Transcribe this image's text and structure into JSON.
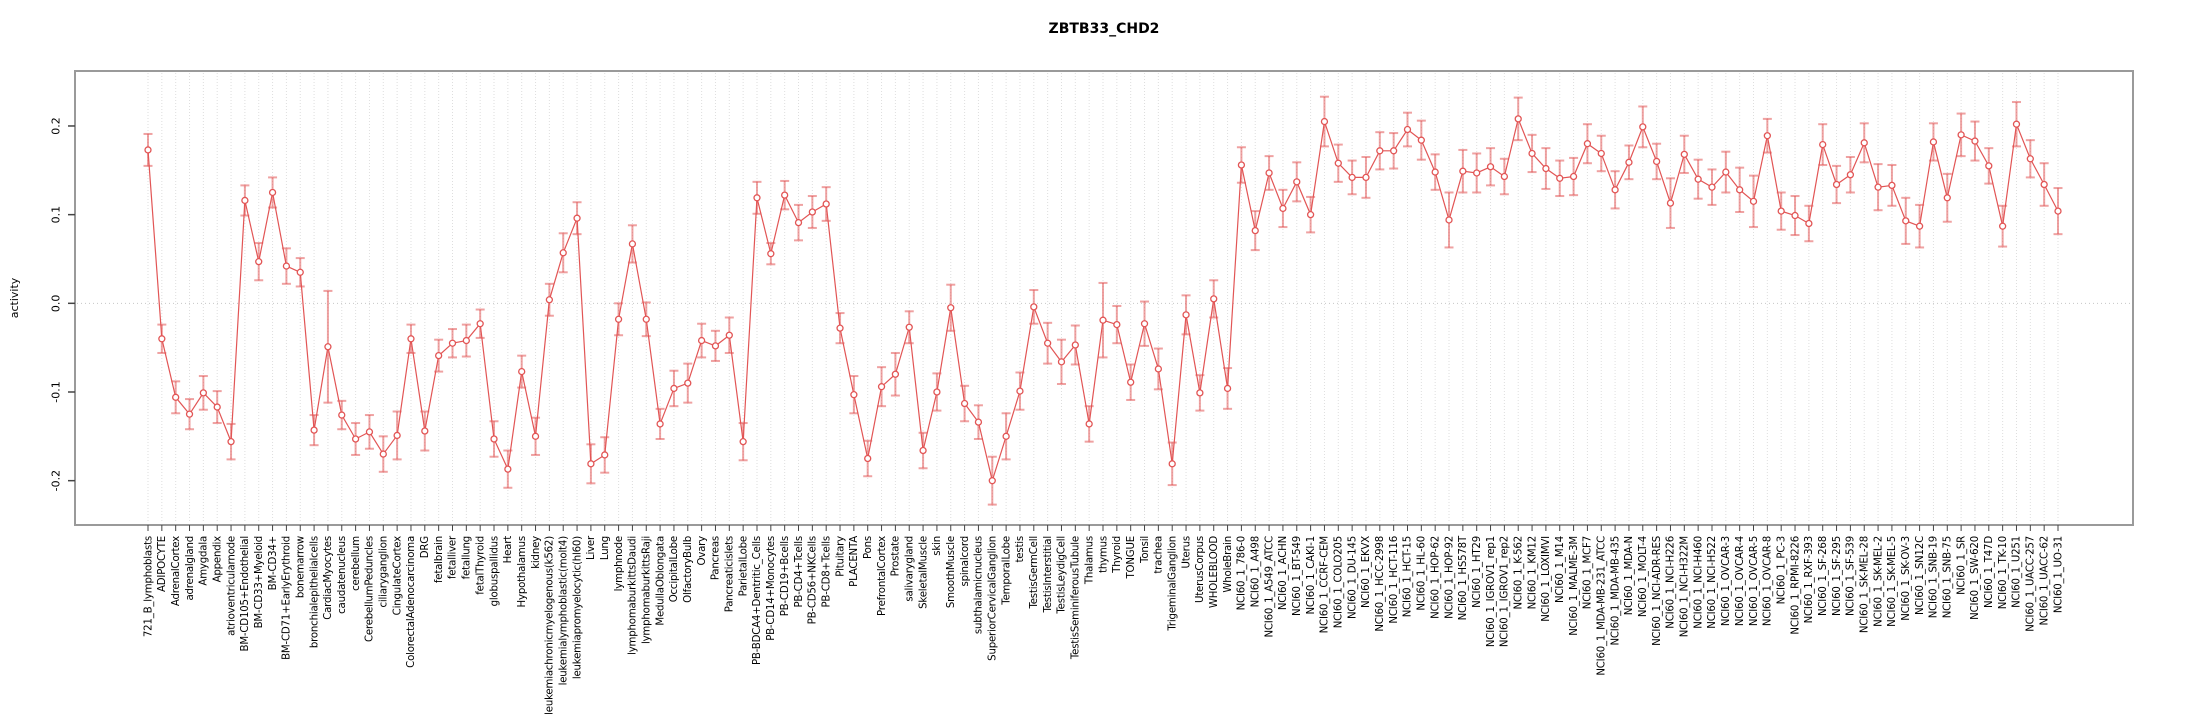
{
  "title": "ZBTB33_CHD2",
  "chart_data": {
    "type": "line",
    "title": "ZBTB33_CHD2",
    "xlabel": "",
    "ylabel": "activity",
    "ylim": [
      -0.25,
      0.262
    ],
    "yticks": [
      -0.2,
      -0.1,
      0.0,
      0.1,
      0.2
    ],
    "grid": "vertical dotted gridline at every category; horizontal dotted line at y=0",
    "legend": "none",
    "point_style": "open-circle",
    "error_bars": true,
    "series_color": "#e25555",
    "errorbar_color": "rgba(226,85,85,0.55)",
    "gridline_color": "#dedede",
    "box_color": "#9a9a9a",
    "categories": [
      "721_B_lymphoblasts",
      "ADIPOCYTE",
      "AdrenalCortex",
      "adrenalgland",
      "Amygdala",
      "Appendix",
      "atrioventricularnode",
      "BM-CD105+Endothelial",
      "BM-CD33+Myeloid",
      "BM-CD34+",
      "BM-CD71+EarlyErythroid",
      "bonemarrow",
      "bronchialepithelialcells",
      "CardiacMyocytes",
      "caudatenucleus",
      "cerebellum",
      "CerebellumPeduncles",
      "ciliaryganglion",
      "CingulateCortex",
      "ColorectalAdenocarcinoma",
      "DRG",
      "fetalbrain",
      "fetalliver",
      "fetallung",
      "fetalThyroid",
      "globuspallidus",
      "Heart",
      "Hypothalamus",
      "kidney",
      "leukemiachronicmyelogenous(k562)",
      "leukemialymphoblastic(molt4)",
      "leukemiapromyelocytic(hl60)",
      "Liver",
      "Lung",
      "lymphnode",
      "lymphomaburkittsDaudi",
      "lymphomaburkittsRaji",
      "MedullaOblongata",
      "OccipitalLobe",
      "OlfactoryBulb",
      "Ovary",
      "Pancreas",
      "Pancreaticislets",
      "ParietalLobe",
      "PB-BDCA4+Dentritic_Cells",
      "PB-CD14+Monocytes",
      "PB-CD19+Bcells",
      "PB-CD4+Tcells",
      "PB-CD56+NKCells",
      "PB-CD8+Tcells",
      "Pituitary",
      "PLACENTA",
      "Pons",
      "PrefrontalCortex",
      "Prostate",
      "salivarygland",
      "SkeletalMuscle",
      "skin",
      "SmoothMuscle",
      "spinalcord",
      "subthalamicnucleus",
      "SuperiorCervicalGanglion",
      "TemporalLobe",
      "testis",
      "TestisGermCell",
      "TestisInterstitial",
      "TestisLeydigCell",
      "TestisSeminiferousTubule",
      "Thalamus",
      "thymus",
      "Thyroid",
      "TONGUE",
      "Tonsil",
      "trachea",
      "TrigeminalGanglion",
      "Uterus",
      "UterusCorpus",
      "WHOLEBLOOD",
      "WholeBrain",
      "NCI60_1_786-0",
      "NCI60_1_A498",
      "NCI60_1_A549_ATCC",
      "NCI60_1_ACHN",
      "NCI60_1_BT-549",
      "NCI60_1_CAKI-1",
      "NCI60_1_CCRF-CEM",
      "NCI60_1_COLO205",
      "NCI60_1_DU-145",
      "NCI60_1_EKVX",
      "NCI60_1_HCC-2998",
      "NCI60_1_HCT-116",
      "NCI60_1_HCT-15",
      "NCI60_1_HL-60",
      "NCI60_1_HOP-62",
      "NCI60_1_HOP-92",
      "NCI60_1_HS578T",
      "NCI60_1_HT29",
      "NCI60_1_IGROV1_rep1",
      "NCI60_1_IGROV1_rep2",
      "NCI60_1_K-562",
      "NCI60_1_KM12",
      "NCI60_1_LOXIMVI",
      "NCI60_1_M14",
      "NCI60_1_MALME-3M",
      "NCI60_1_MCF7",
      "NCI60_1_MDA-MB-231_ATCC",
      "NCI60_1_MDA-MB-435",
      "NCI60_1_MDA-N",
      "NCI60_1_MOLT-4",
      "NCI60_1_NCI-ADR-RES",
      "NCI60_1_NCI-H226",
      "NCI60_1_NCI-H322M",
      "NCI60_1_NCI-H460",
      "NCI60_1_NCI-H522",
      "NCI60_1_OVCAR-3",
      "NCI60_1_OVCAR-4",
      "NCI60_1_OVCAR-5",
      "NCI60_1_OVCAR-8",
      "NCI60_1_PC-3",
      "NCI60_1_RPMI-8226",
      "NCI60_1_RXF-393",
      "NCI60_1_SF-268",
      "NCI60_1_SF-295",
      "NCI60_1_SF-539",
      "NCI60_1_SK-MEL-28",
      "NCI60_1_SK-MEL-2",
      "NCI60_1_SK-MEL-5",
      "NCI60_1_SK-OV-3",
      "NCI60_1_SN12C",
      "NCI60_1_SNB-19",
      "NCI60_1_SNB-75",
      "NCI60_1_SR",
      "NCI60_1_SW-620",
      "NCI60_1_T47D",
      "NCI60_1_TK-10",
      "NCI60_1_U251",
      "NCI60_1_UACC-257",
      "NCI60_1_UACC-62",
      "NCI60_1_UO-31"
    ],
    "values": [
      0.173,
      -0.04,
      -0.106,
      -0.125,
      -0.101,
      -0.117,
      -0.156,
      0.116,
      0.047,
      0.125,
      0.042,
      0.035,
      -0.143,
      -0.049,
      -0.126,
      -0.153,
      -0.145,
      -0.17,
      -0.149,
      -0.04,
      -0.144,
      -0.059,
      -0.045,
      -0.042,
      -0.023,
      -0.153,
      -0.187,
      -0.077,
      -0.15,
      0.004,
      0.057,
      0.096,
      -0.181,
      -0.171,
      -0.018,
      0.067,
      -0.018,
      -0.136,
      -0.096,
      -0.09,
      -0.042,
      -0.048,
      -0.036,
      -0.156,
      0.119,
      0.056,
      0.122,
      0.091,
      0.103,
      0.112,
      -0.028,
      -0.103,
      -0.175,
      -0.094,
      -0.08,
      -0.027,
      -0.166,
      -0.1,
      -0.005,
      -0.113,
      -0.134,
      -0.2,
      -0.15,
      -0.099,
      -0.004,
      -0.045,
      -0.066,
      -0.047,
      -0.136,
      -0.019,
      -0.024,
      -0.089,
      -0.023,
      -0.074,
      -0.181,
      -0.013,
      -0.101,
      0.005,
      -0.096,
      0.156,
      0.082,
      0.147,
      0.107,
      0.137,
      0.1,
      0.205,
      0.158,
      0.142,
      0.142,
      0.172,
      0.172,
      0.196,
      0.184,
      0.148,
      0.094,
      0.149,
      0.147,
      0.154,
      0.143,
      0.208,
      0.169,
      0.152,
      0.141,
      0.143,
      0.18,
      0.169,
      0.128,
      0.159,
      0.199,
      0.16,
      0.113,
      0.168,
      0.14,
      0.131,
      0.148,
      0.128,
      0.115,
      0.189,
      0.104,
      0.099,
      0.09,
      0.179,
      0.134,
      0.145,
      0.181,
      0.131,
      0.133,
      0.093,
      0.087,
      0.182,
      0.119,
      0.19,
      0.183,
      0.155,
      0.087,
      0.202,
      0.163,
      0.134,
      0.104
    ],
    "errors": [
      0.018,
      0.016,
      0.018,
      0.017,
      0.019,
      0.018,
      0.02,
      0.017,
      0.021,
      0.017,
      0.02,
      0.016,
      0.017,
      0.063,
      0.016,
      0.018,
      0.019,
      0.02,
      0.027,
      0.016,
      0.022,
      0.018,
      0.016,
      0.018,
      0.016,
      0.02,
      0.021,
      0.018,
      0.021,
      0.018,
      0.022,
      0.018,
      0.022,
      0.02,
      0.018,
      0.021,
      0.019,
      0.017,
      0.02,
      0.022,
      0.019,
      0.017,
      0.02,
      0.021,
      0.018,
      0.012,
      0.016,
      0.02,
      0.018,
      0.019,
      0.017,
      0.021,
      0.02,
      0.022,
      0.024,
      0.018,
      0.02,
      0.021,
      0.026,
      0.02,
      0.019,
      0.027,
      0.026,
      0.021,
      0.019,
      0.023,
      0.025,
      0.022,
      0.02,
      0.042,
      0.021,
      0.02,
      0.025,
      0.023,
      0.024,
      0.022,
      0.02,
      0.021,
      0.023,
      0.02,
      0.022,
      0.019,
      0.021,
      0.022,
      0.02,
      0.028,
      0.021,
      0.019,
      0.023,
      0.021,
      0.02,
      0.019,
      0.022,
      0.02,
      0.031,
      0.024,
      0.022,
      0.021,
      0.02,
      0.024,
      0.021,
      0.023,
      0.02,
      0.021,
      0.022,
      0.02,
      0.021,
      0.019,
      0.023,
      0.02,
      0.028,
      0.021,
      0.022,
      0.02,
      0.023,
      0.025,
      0.029,
      0.019,
      0.021,
      0.022,
      0.02,
      0.023,
      0.021,
      0.02,
      0.022,
      0.026,
      0.023,
      0.026,
      0.024,
      0.021,
      0.027,
      0.024,
      0.022,
      0.02,
      0.023,
      0.025,
      0.021,
      0.024,
      0.026
    ]
  }
}
